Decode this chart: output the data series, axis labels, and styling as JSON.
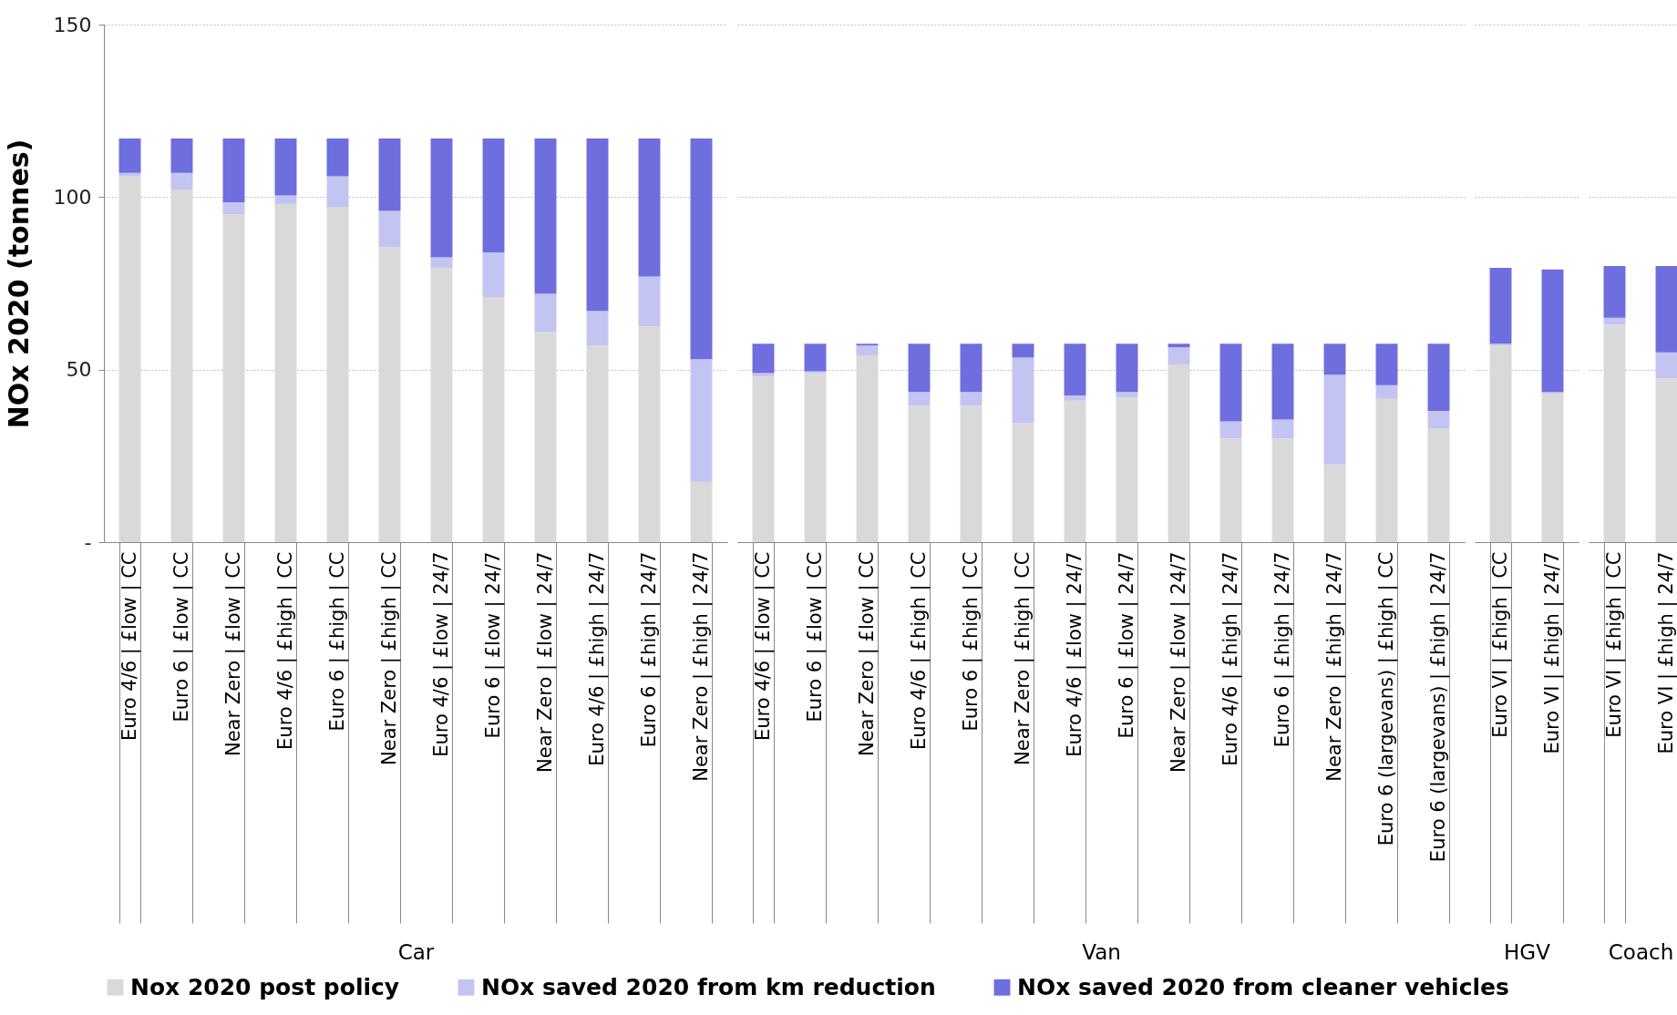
{
  "chart_data": [
    {
      "type": "bar",
      "stacked": true,
      "xlabel": "Car",
      "ylabel": "NOx 2020 (tonnes)",
      "categories": [
        "Euro 4/6 | £low | CC",
        "Euro 6 | £low | CC",
        "Near Zero | £low | CC",
        "Euro 4/6 | £high | CC",
        "Euro 6 | £high | CC",
        "Near Zero | £high | CC",
        "Euro 4/6 | £low | 24/7",
        "Euro 6 | £low | 24/7",
        "Near Zero | £low | 24/7",
        "Euro 4/6 | £high | 24/7",
        "Euro 6 | £high | 24/7",
        "Near Zero | £high | 24/7"
      ],
      "series": [
        {
          "name": "Nox 2020 post policy",
          "color": "#d9d9d9",
          "values": [
            106,
            102,
            95,
            98,
            97,
            85.5,
            79.5,
            71,
            61,
            57,
            62.5,
            17.5
          ]
        },
        {
          "name": "NOx saved 2020 from km reduction",
          "color": "#c4c4f2",
          "values": [
            1,
            5,
            3.5,
            2.5,
            9,
            10.5,
            3,
            13,
            11,
            10,
            14.5,
            35.5
          ]
        },
        {
          "name": "NOx saved 2020 from cleaner vehicles",
          "color": "#6e6ede",
          "values": [
            10,
            10,
            18.5,
            16.5,
            11,
            21,
            34.5,
            33,
            45,
            50,
            40,
            64
          ]
        }
      ],
      "ylim": [
        0,
        150
      ],
      "yticks": [
        {
          "value": 0,
          "label": "-"
        },
        50,
        100,
        150
      ],
      "grid": "y",
      "legend": "bottom"
    },
    {
      "type": "bar",
      "stacked": true,
      "xlabel": "Van",
      "categories": [
        "Euro 4/6 | £low | CC",
        "Euro 6 | £low | CC",
        "Near Zero | £low | CC",
        "Euro 4/6 | £high | CC",
        "Euro 6 | £high | CC",
        "Near Zero | £high | CC",
        "Euro 4/6 | £low | 24/7",
        "Euro 6 | £low | 24/7",
        "Near Zero | £low | 24/7",
        "Euro 4/6 | £high | 24/7",
        "Euro 6 | £high | 24/7",
        "Near Zero | £high | 24/7",
        "Euro 6 (largevans) | £high | CC",
        "Euro 6 (largevans) | £high | 24/7"
      ],
      "series": [
        {
          "color": "#d9d9d9",
          "values": [
            48,
            49,
            54,
            39.5,
            39.5,
            34.5,
            41,
            42,
            51.5,
            30,
            30,
            22.5,
            41.5,
            33
          ]
        },
        {
          "color": "#c4c4f2",
          "values": [
            1,
            0.5,
            3,
            4,
            4,
            19,
            1.5,
            1.5,
            5,
            5,
            5.5,
            26,
            4,
            5
          ]
        },
        {
          "color": "#6e6ede",
          "values": [
            8.5,
            8,
            0.5,
            14,
            14,
            4,
            15,
            14,
            1,
            22.5,
            22,
            9,
            12,
            19.5
          ]
        }
      ],
      "ylim": [
        0,
        150
      ],
      "yticks": [
        0,
        50,
        100,
        150
      ],
      "grid": "y",
      "tick_labels": "x"
    },
    {
      "type": "bar",
      "stacked": true,
      "xlabel": "HGV",
      "categories": [
        "Euro VI | £high | CC",
        "Euro VI | £high | 24/7"
      ],
      "series": [
        {
          "color": "#d9d9d9",
          "values": [
            57,
            43
          ]
        },
        {
          "color": "#c4c4f2",
          "values": [
            0.5,
            0.5
          ]
        },
        {
          "color": "#6e6ede",
          "values": [
            22,
            35.5
          ]
        }
      ],
      "ylim": [
        0,
        150
      ],
      "yticks": [
        0,
        50,
        100,
        150
      ],
      "grid": "y",
      "tick_labels": "x"
    },
    {
      "type": "bar",
      "stacked": true,
      "xlabel": "Coach",
      "categories": [
        "Euro VI | £high | CC",
        "Euro VI | £high | 24/7"
      ],
      "series": [
        {
          "color": "#d9d9d9",
          "values": [
            63,
            47.5
          ]
        },
        {
          "color": "#c4c4f2",
          "values": [
            2,
            7.5
          ]
        },
        {
          "color": "#6e6ede",
          "values": [
            15,
            25
          ]
        }
      ],
      "ylim": [
        0,
        150
      ],
      "yticks": [
        0,
        50,
        100,
        150
      ],
      "grid": "y",
      "tick_labels": "x"
    }
  ]
}
